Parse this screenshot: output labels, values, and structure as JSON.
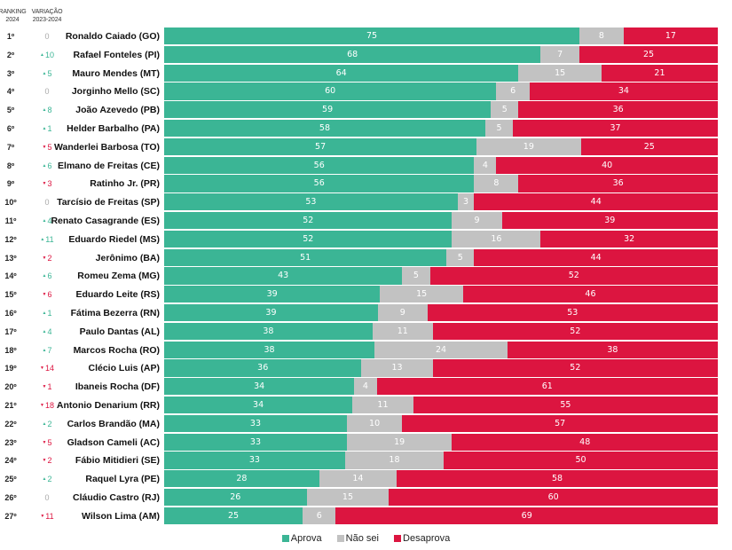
{
  "colors": {
    "approve": "#3bb595",
    "unsure": "#c2c2c2",
    "disapprove": "#dc1540",
    "var_up": "#3bb595",
    "var_down": "#dc1540",
    "var_zero": "#aaaaaa"
  },
  "headers": {
    "ranking_line1": "RANKING",
    "ranking_line2": "2024",
    "variation_line1": "VARIAÇÃO",
    "variation_line2": "2023-2024"
  },
  "chart_data": {
    "type": "bar",
    "orientation": "horizontal",
    "stacked": true,
    "normalized": true,
    "title": "",
    "xlabel": "",
    "ylabel": "",
    "legend_position": "bottom",
    "series_names": [
      "Aprova",
      "Não sei",
      "Desaprova"
    ],
    "rows": [
      {
        "rank": "1º",
        "variation": 0,
        "name": "Ronaldo Caiado (GO)",
        "approve": 75,
        "unsure": 8,
        "disapprove": 17
      },
      {
        "rank": "2º",
        "variation": 10,
        "name": "Rafael Fonteles (PI)",
        "approve": 68,
        "unsure": 7,
        "disapprove": 25
      },
      {
        "rank": "3º",
        "variation": 5,
        "name": "Mauro Mendes (MT)",
        "approve": 64,
        "unsure": 15,
        "disapprove": 21
      },
      {
        "rank": "4º",
        "variation": 0,
        "name": "Jorginho Mello (SC)",
        "approve": 60,
        "unsure": 6,
        "disapprove": 34
      },
      {
        "rank": "5º",
        "variation": 8,
        "name": "João Azevedo (PB)",
        "approve": 59,
        "unsure": 5,
        "disapprove": 36
      },
      {
        "rank": "6º",
        "variation": 1,
        "name": "Helder Barbalho (PA)",
        "approve": 58,
        "unsure": 5,
        "disapprove": 37
      },
      {
        "rank": "7º",
        "variation": -5,
        "name": "Wanderlei Barbosa (TO)",
        "approve": 57,
        "unsure": 19,
        "disapprove": 25
      },
      {
        "rank": "8º",
        "variation": 6,
        "name": "Elmano de Freitas (CE)",
        "approve": 56,
        "unsure": 4,
        "disapprove": 40
      },
      {
        "rank": "9º",
        "variation": -3,
        "name": "Ratinho Jr. (PR)",
        "approve": 56,
        "unsure": 8,
        "disapprove": 36
      },
      {
        "rank": "10º",
        "variation": 0,
        "name": "Tarcísio de Freitas (SP)",
        "approve": 53,
        "unsure": 3,
        "disapprove": 44
      },
      {
        "rank": "11º",
        "variation": 4,
        "name": "Renato Casagrande (ES)",
        "approve": 52,
        "unsure": 9,
        "disapprove": 39
      },
      {
        "rank": "12º",
        "variation": 11,
        "name": "Eduardo Riedel (MS)",
        "approve": 52,
        "unsure": 16,
        "disapprove": 32
      },
      {
        "rank": "13º",
        "variation": -2,
        "name": "Jerônimo (BA)",
        "approve": 51,
        "unsure": 5,
        "disapprove": 44
      },
      {
        "rank": "14º",
        "variation": 6,
        "name": "Romeu Zema (MG)",
        "approve": 43,
        "unsure": 5,
        "disapprove": 52
      },
      {
        "rank": "15º",
        "variation": -6,
        "name": "Eduardo Leite (RS)",
        "approve": 39,
        "unsure": 15,
        "disapprove": 46
      },
      {
        "rank": "16º",
        "variation": 1,
        "name": "Fátima Bezerra (RN)",
        "approve": 39,
        "unsure": 9,
        "disapprove": 53
      },
      {
        "rank": "17º",
        "variation": 4,
        "name": "Paulo Dantas (AL)",
        "approve": 38,
        "unsure": 11,
        "disapprove": 52
      },
      {
        "rank": "18º",
        "variation": 7,
        "name": "Marcos Rocha (RO)",
        "approve": 38,
        "unsure": 24,
        "disapprove": 38
      },
      {
        "rank": "19º",
        "variation": -14,
        "name": "Clécio Luis (AP)",
        "approve": 36,
        "unsure": 13,
        "disapprove": 52
      },
      {
        "rank": "20º",
        "variation": -1,
        "name": "Ibaneis Rocha (DF)",
        "approve": 34,
        "unsure": 4,
        "disapprove": 61
      },
      {
        "rank": "21º",
        "variation": -18,
        "name": "Antonio Denarium (RR)",
        "approve": 34,
        "unsure": 11,
        "disapprove": 55
      },
      {
        "rank": "22º",
        "variation": 2,
        "name": "Carlos Brandão (MA)",
        "approve": 33,
        "unsure": 10,
        "disapprove": 57
      },
      {
        "rank": "23º",
        "variation": -5,
        "name": "Gladson Cameli (AC)",
        "approve": 33,
        "unsure": 19,
        "disapprove": 48
      },
      {
        "rank": "24º",
        "variation": -2,
        "name": "Fábio Mitidieri (SE)",
        "approve": 33,
        "unsure": 18,
        "disapprove": 50
      },
      {
        "rank": "25º",
        "variation": 2,
        "name": "Raquel Lyra (PE)",
        "approve": 28,
        "unsure": 14,
        "disapprove": 58
      },
      {
        "rank": "26º",
        "variation": 0,
        "name": "Cláudio Castro (RJ)",
        "approve": 26,
        "unsure": 15,
        "disapprove": 60
      },
      {
        "rank": "27º",
        "variation": -11,
        "name": "Wilson Lima (AM)",
        "approve": 25,
        "unsure": 6,
        "disapprove": 69
      }
    ]
  },
  "legend": {
    "approve": "Aprova",
    "unsure": "Não sei",
    "disapprove": "Desaprova"
  }
}
